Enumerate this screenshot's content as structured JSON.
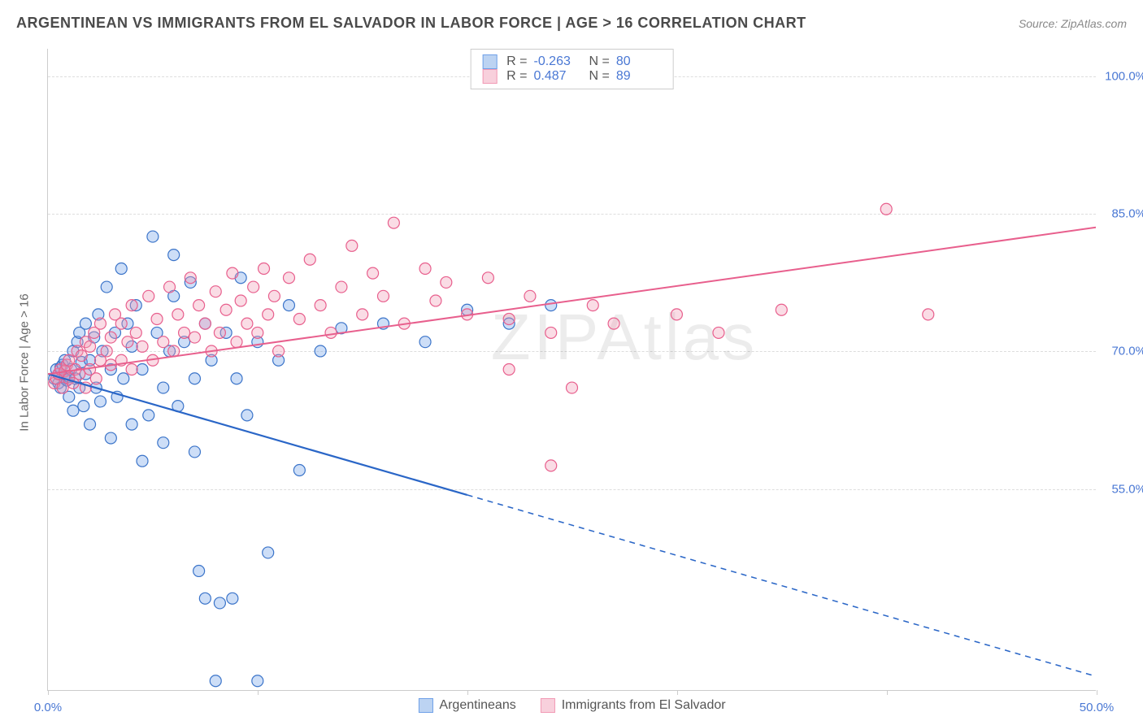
{
  "title": "ARGENTINEAN VS IMMIGRANTS FROM EL SALVADOR IN LABOR FORCE | AGE > 16 CORRELATION CHART",
  "source": "Source: ZipAtlas.com",
  "watermark": "ZIPAtlas",
  "ylabel": "In Labor Force | Age > 16",
  "chart": {
    "type": "scatter",
    "xlim": [
      0,
      50
    ],
    "ylim": [
      33,
      103
    ],
    "xticks": [
      0,
      10,
      20,
      30,
      40,
      50
    ],
    "xtick_labels": [
      "0.0%",
      "",
      "",
      "",
      "",
      "50.0%"
    ],
    "yticks": [
      55,
      70,
      85,
      100
    ],
    "ytick_labels": [
      "55.0%",
      "70.0%",
      "85.0%",
      "100.0%"
    ],
    "grid_color": "#dddddd",
    "axis_color": "#cccccc",
    "tick_label_color": "#4a78d4",
    "background_color": "#ffffff",
    "marker_radius": 7,
    "marker_fill_opacity": 0.35,
    "marker_stroke_width": 1.2
  },
  "series": [
    {
      "name": "Argentineans",
      "color": "#6fa0e8",
      "stroke": "#3b74c9",
      "R": "-0.263",
      "N": "80",
      "trend": {
        "x1": 0,
        "y1": 67.5,
        "x2": 50,
        "y2": 34.5,
        "solid_until_x": 20,
        "line_color": "#2a66c7",
        "line_width": 2.2
      },
      "points": [
        [
          0.3,
          67
        ],
        [
          0.4,
          68
        ],
        [
          0.5,
          66.5
        ],
        [
          0.5,
          67.5
        ],
        [
          0.6,
          68.2
        ],
        [
          0.6,
          66
        ],
        [
          0.7,
          68.5
        ],
        [
          0.8,
          67
        ],
        [
          0.8,
          69
        ],
        [
          0.9,
          66.8
        ],
        [
          1.0,
          67.2
        ],
        [
          1.0,
          65
        ],
        [
          1.1,
          68
        ],
        [
          1.2,
          70
        ],
        [
          1.2,
          63.5
        ],
        [
          1.3,
          67
        ],
        [
          1.4,
          71
        ],
        [
          1.5,
          66
        ],
        [
          1.5,
          72
        ],
        [
          1.6,
          68.8
        ],
        [
          1.7,
          64
        ],
        [
          1.8,
          67.5
        ],
        [
          1.8,
          73
        ],
        [
          2.0,
          69
        ],
        [
          2.0,
          62
        ],
        [
          2.2,
          71.5
        ],
        [
          2.3,
          66
        ],
        [
          2.4,
          74
        ],
        [
          2.5,
          64.5
        ],
        [
          2.6,
          70
        ],
        [
          2.8,
          77
        ],
        [
          3.0,
          68
        ],
        [
          3.0,
          60.5
        ],
        [
          3.2,
          72
        ],
        [
          3.3,
          65
        ],
        [
          3.5,
          79
        ],
        [
          3.6,
          67
        ],
        [
          3.8,
          73
        ],
        [
          4.0,
          62
        ],
        [
          4.0,
          70.5
        ],
        [
          4.2,
          75
        ],
        [
          4.5,
          68
        ],
        [
          4.5,
          58
        ],
        [
          4.8,
          63
        ],
        [
          5.0,
          82.5
        ],
        [
          5.2,
          72
        ],
        [
          5.5,
          66
        ],
        [
          5.5,
          60
        ],
        [
          5.8,
          70
        ],
        [
          6.0,
          76
        ],
        [
          6.0,
          80.5
        ],
        [
          6.2,
          64
        ],
        [
          6.5,
          71
        ],
        [
          6.8,
          77.5
        ],
        [
          7.0,
          67
        ],
        [
          7.0,
          59
        ],
        [
          7.2,
          46
        ],
        [
          7.5,
          43
        ],
        [
          7.5,
          73
        ],
        [
          7.8,
          69
        ],
        [
          8.0,
          34
        ],
        [
          8.2,
          42.5
        ],
        [
          8.5,
          72
        ],
        [
          8.8,
          43
        ],
        [
          9.0,
          67
        ],
        [
          9.2,
          78
        ],
        [
          9.5,
          63
        ],
        [
          10.0,
          71
        ],
        [
          10.0,
          34
        ],
        [
          10.5,
          48
        ],
        [
          11.0,
          69
        ],
        [
          11.5,
          75
        ],
        [
          12.0,
          57
        ],
        [
          13.0,
          70
        ],
        [
          14.0,
          72.5
        ],
        [
          16.0,
          73
        ],
        [
          18.0,
          71
        ],
        [
          20.0,
          74.5
        ],
        [
          22.0,
          73
        ],
        [
          24.0,
          75
        ]
      ]
    },
    {
      "name": "Immigrants from El Salvador",
      "color": "#f29ab5",
      "stroke": "#e85f8d",
      "R": "0.487",
      "N": "89",
      "trend": {
        "x1": 0,
        "y1": 67.5,
        "x2": 50,
        "y2": 83.5,
        "solid_until_x": 50,
        "line_color": "#e85f8d",
        "line_width": 2.0
      },
      "points": [
        [
          0.3,
          66.5
        ],
        [
          0.4,
          67
        ],
        [
          0.5,
          67.5
        ],
        [
          0.6,
          68
        ],
        [
          0.7,
          66
        ],
        [
          0.8,
          67.8
        ],
        [
          0.9,
          68.5
        ],
        [
          1.0,
          67
        ],
        [
          1.0,
          69
        ],
        [
          1.2,
          66.5
        ],
        [
          1.3,
          68
        ],
        [
          1.4,
          70
        ],
        [
          1.5,
          67.5
        ],
        [
          1.6,
          69.5
        ],
        [
          1.8,
          71
        ],
        [
          1.8,
          66
        ],
        [
          2.0,
          68
        ],
        [
          2.0,
          70.5
        ],
        [
          2.2,
          72
        ],
        [
          2.3,
          67
        ],
        [
          2.5,
          69
        ],
        [
          2.5,
          73
        ],
        [
          2.8,
          70
        ],
        [
          3.0,
          68.5
        ],
        [
          3.0,
          71.5
        ],
        [
          3.2,
          74
        ],
        [
          3.5,
          69
        ],
        [
          3.5,
          73
        ],
        [
          3.8,
          71
        ],
        [
          4.0,
          75
        ],
        [
          4.0,
          68
        ],
        [
          4.2,
          72
        ],
        [
          4.5,
          70.5
        ],
        [
          4.8,
          76
        ],
        [
          5.0,
          69
        ],
        [
          5.2,
          73.5
        ],
        [
          5.5,
          71
        ],
        [
          5.8,
          77
        ],
        [
          6.0,
          70
        ],
        [
          6.2,
          74
        ],
        [
          6.5,
          72
        ],
        [
          6.8,
          78
        ],
        [
          7.0,
          71.5
        ],
        [
          7.2,
          75
        ],
        [
          7.5,
          73
        ],
        [
          7.8,
          70
        ],
        [
          8.0,
          76.5
        ],
        [
          8.2,
          72
        ],
        [
          8.5,
          74.5
        ],
        [
          8.8,
          78.5
        ],
        [
          9.0,
          71
        ],
        [
          9.2,
          75.5
        ],
        [
          9.5,
          73
        ],
        [
          9.8,
          77
        ],
        [
          10.0,
          72
        ],
        [
          10.3,
          79
        ],
        [
          10.5,
          74
        ],
        [
          10.8,
          76
        ],
        [
          11.0,
          70
        ],
        [
          11.5,
          78
        ],
        [
          12.0,
          73.5
        ],
        [
          12.5,
          80
        ],
        [
          13.0,
          75
        ],
        [
          13.5,
          72
        ],
        [
          14.0,
          77
        ],
        [
          14.5,
          81.5
        ],
        [
          15.0,
          74
        ],
        [
          15.5,
          78.5
        ],
        [
          16.0,
          76
        ],
        [
          16.5,
          84
        ],
        [
          17.0,
          73
        ],
        [
          18.0,
          79
        ],
        [
          18.5,
          75.5
        ],
        [
          19.0,
          77.5
        ],
        [
          20.0,
          74
        ],
        [
          21.0,
          78
        ],
        [
          22.0,
          73.5
        ],
        [
          22.0,
          68
        ],
        [
          23.0,
          76
        ],
        [
          24.0,
          72
        ],
        [
          24.0,
          57.5
        ],
        [
          25.0,
          66
        ],
        [
          26.0,
          75
        ],
        [
          27.0,
          73
        ],
        [
          30.0,
          74
        ],
        [
          32.0,
          72
        ],
        [
          35.0,
          74.5
        ],
        [
          40.0,
          85.5
        ],
        [
          42.0,
          74
        ]
      ]
    }
  ],
  "legend_bottom": [
    {
      "label": "Argentineans",
      "fill": "#bcd3f2",
      "stroke": "#6fa0e8"
    },
    {
      "label": "Immigrants from El Salvador",
      "fill": "#f8d0dc",
      "stroke": "#f29ab5"
    }
  ],
  "legend_top": [
    {
      "fill": "#bcd3f2",
      "stroke": "#6fa0e8",
      "R": "-0.263",
      "N": "80"
    },
    {
      "fill": "#f8d0dc",
      "stroke": "#f29ab5",
      "R": "0.487",
      "N": "89"
    }
  ]
}
